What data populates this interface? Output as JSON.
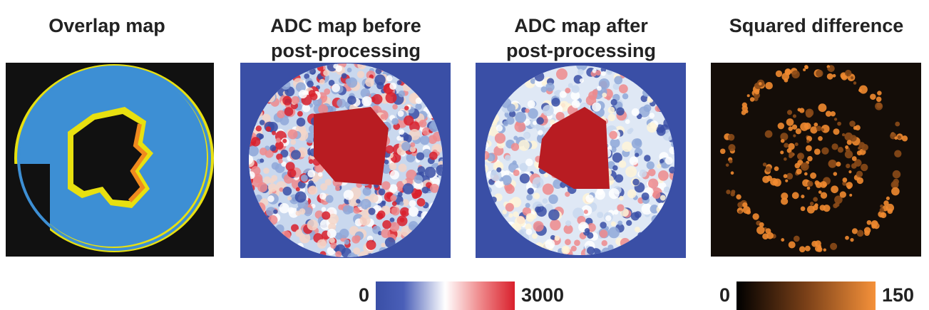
{
  "panels": [
    {
      "title_lines": [
        "Overlap map"
      ]
    },
    {
      "title_lines": [
        "ADC map before",
        "post-processing"
      ]
    },
    {
      "title_lines": [
        "ADC map after",
        "post-processing"
      ]
    },
    {
      "title_lines": [
        "Squared difference"
      ]
    }
  ],
  "colorbars": [
    {
      "min": 0,
      "max": 3000
    },
    {
      "min": 0,
      "max": 150
    }
  ]
}
